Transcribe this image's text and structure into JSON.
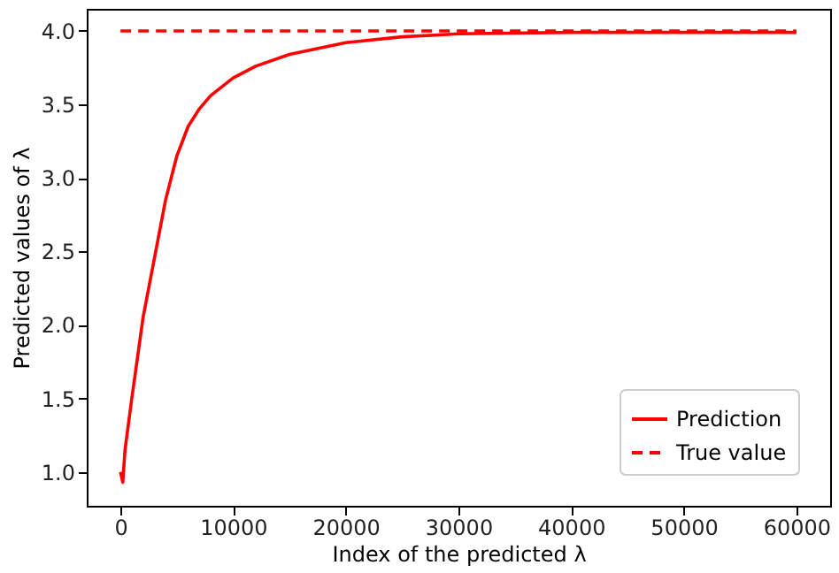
{
  "chart_data": {
    "type": "line",
    "xlabel": "Index of the predicted λ",
    "ylabel": "Predicted values of λ",
    "xlim": [
      -3000,
      63000
    ],
    "xticks": [
      0,
      10000,
      20000,
      30000,
      40000,
      50000,
      60000
    ],
    "ylim": [
      0.77,
      4.15
    ],
    "yticks": [
      {
        "value": 1,
        "label": "1.0"
      },
      1.5,
      {
        "value": 2,
        "label": "2.0"
      },
      2.5,
      {
        "value": 3,
        "label": "3.0"
      },
      3.5,
      {
        "value": 4,
        "label": "4.0"
      }
    ],
    "grid": false,
    "legend": "bottom right",
    "marker": "none",
    "series": [
      {
        "name": "Prediction",
        "color": "#ff0000",
        "line_style": "solid",
        "x": [
          0,
          200,
          400,
          1000,
          2000,
          3000,
          4000,
          5000,
          6000,
          7000,
          8000,
          10000,
          12000,
          15000,
          20000,
          25000,
          30000,
          40000,
          50000,
          60000
        ],
        "values": [
          1.0,
          0.93,
          1.15,
          1.5,
          2.05,
          2.45,
          2.85,
          3.15,
          3.35,
          3.47,
          3.56,
          3.68,
          3.76,
          3.84,
          3.92,
          3.96,
          3.98,
          3.99,
          3.99,
          3.99
        ]
      },
      {
        "name": "True value",
        "color": "#ff0000",
        "line_style": "dashed",
        "x": [
          0,
          60000
        ],
        "values": [
          4.0,
          4.0
        ]
      }
    ]
  }
}
